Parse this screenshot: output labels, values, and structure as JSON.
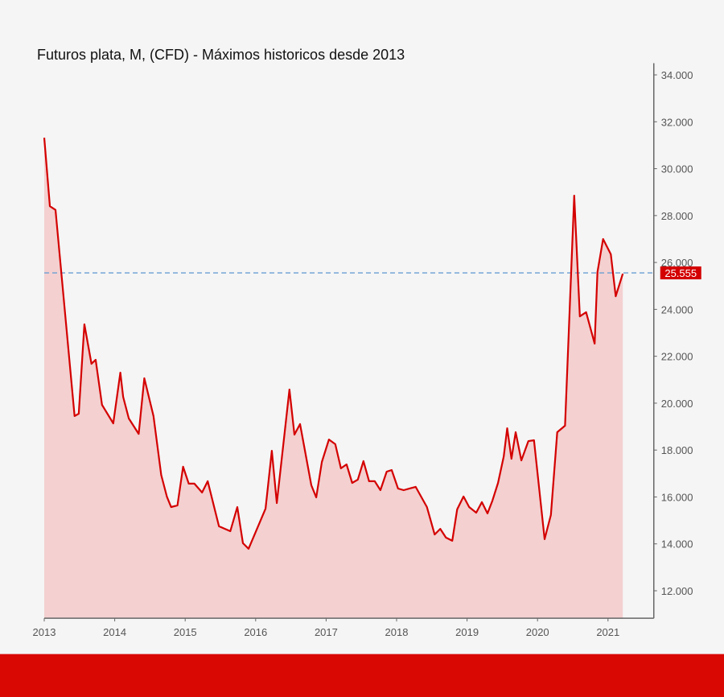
{
  "chart_data": {
    "type": "area",
    "title": "Futuros plata, M, (CFD) - Máximos historicos desde 2013",
    "xlabel": "",
    "ylabel": "",
    "xlim": [
      2013.0,
      2021.65
    ],
    "ylim": [
      10830,
      34500
    ],
    "x_ticks": [
      2013,
      2014,
      2015,
      2016,
      2017,
      2018,
      2019,
      2020,
      2021
    ],
    "y_ticks": [
      12000,
      14000,
      16000,
      18000,
      20000,
      22000,
      24000,
      26000,
      28000,
      30000,
      32000,
      34000
    ],
    "y_tick_labels": [
      "12.000",
      "14.000",
      "16.000",
      "18.000",
      "20.000",
      "22.000",
      "24.000",
      "26.000",
      "28.000",
      "30.000",
      "32.000",
      "34.000"
    ],
    "y_axis_position": "right",
    "grid": false,
    "colors": {
      "line": "#d40000",
      "fill": "#f4d0d0",
      "reference": "#6a9fd4",
      "label_bg": "#d40000"
    },
    "reference_line": {
      "value": 25555,
      "label": "25.555"
    },
    "series": [
      {
        "name": "Futuros plata",
        "x": [
          2013.0,
          2013.08,
          2013.16,
          2013.43,
          2013.49,
          2013.57,
          2013.67,
          2013.73,
          2013.82,
          2013.98,
          2014.08,
          2014.12,
          2014.2,
          2014.34,
          2014.42,
          2014.55,
          2014.66,
          2014.74,
          2014.8,
          2014.89,
          2014.97,
          2015.05,
          2015.13,
          2015.24,
          2015.32,
          2015.48,
          2015.64,
          2015.74,
          2015.82,
          2015.9,
          2016.14,
          2016.23,
          2016.3,
          2016.48,
          2016.55,
          2016.63,
          2016.79,
          2016.86,
          2016.94,
          2017.04,
          2017.13,
          2017.21,
          2017.29,
          2017.37,
          2017.45,
          2017.53,
          2017.61,
          2017.69,
          2017.77,
          2017.86,
          2017.93,
          2018.02,
          2018.1,
          2018.27,
          2018.43,
          2018.54,
          2018.62,
          2018.7,
          2018.79,
          2018.86,
          2018.95,
          2019.03,
          2019.13,
          2019.21,
          2019.29,
          2019.36,
          2019.44,
          2019.52,
          2019.57,
          2019.63,
          2019.69,
          2019.77,
          2019.87,
          2019.95,
          2020.1,
          2020.19,
          2020.28,
          2020.39,
          2020.52,
          2020.6,
          2020.69,
          2020.81,
          2020.85,
          2020.93,
          2021.04,
          2021.11,
          2021.21
        ],
        "values": [
          31320,
          28400,
          28240,
          19450,
          19550,
          23360,
          21680,
          21850,
          19930,
          19140,
          21300,
          20270,
          19350,
          18690,
          21060,
          19450,
          16940,
          16020,
          15570,
          15640,
          17290,
          16570,
          16570,
          16190,
          16670,
          14750,
          14540,
          15570,
          14030,
          13790,
          15500,
          17970,
          15740,
          20580,
          18660,
          19110,
          16500,
          15980,
          17490,
          18450,
          18250,
          17220,
          17390,
          16600,
          16740,
          17530,
          16670,
          16670,
          16290,
          17080,
          17150,
          16360,
          16290,
          16430,
          15570,
          14400,
          14640,
          14270,
          14130,
          15470,
          16020,
          15570,
          15330,
          15780,
          15300,
          15840,
          16600,
          17730,
          18930,
          17630,
          18760,
          17560,
          18380,
          18420,
          14200,
          15230,
          18760,
          19040,
          28850,
          23700,
          23880,
          22540,
          25590,
          27000,
          26350,
          24560,
          25520
        ]
      }
    ]
  }
}
